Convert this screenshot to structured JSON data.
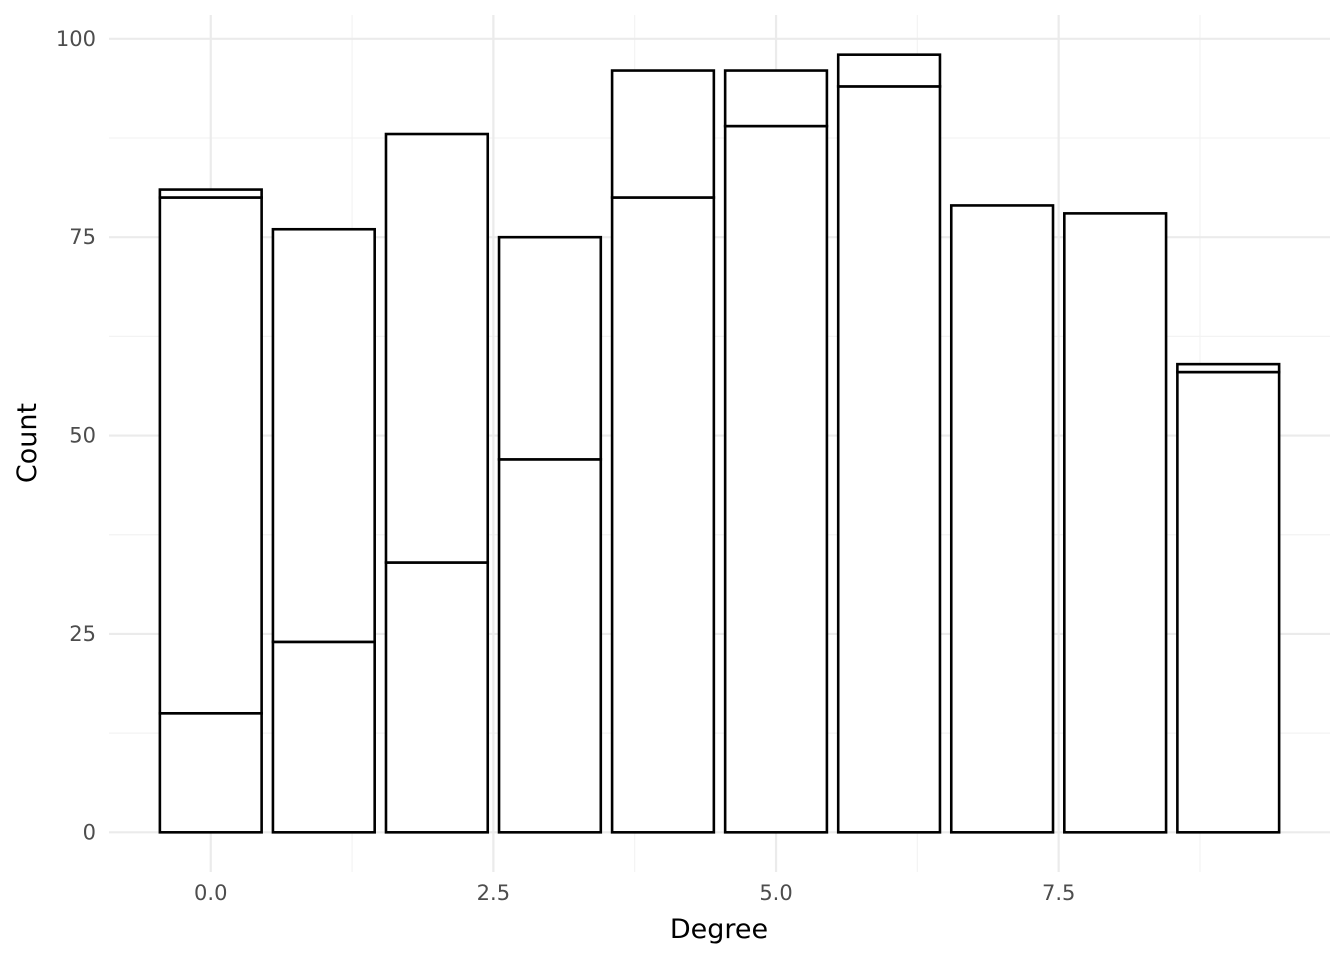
{
  "chart_data": {
    "type": "bar",
    "stacked": true,
    "xlabel": "Degree",
    "ylabel": "Count",
    "xlim": [
      -0.9,
      9.9
    ],
    "ylim": [
      -5,
      103
    ],
    "xticks": [
      0.0,
      2.5,
      5.0,
      7.5
    ],
    "xtick_labels": [
      "0.0",
      "2.5",
      "5.0",
      "7.5"
    ],
    "yticks": [
      0,
      25,
      50,
      75,
      100
    ],
    "ytick_labels": [
      "0",
      "25",
      "50",
      "75",
      "100"
    ],
    "grid": true,
    "legend": "none",
    "x": [
      0,
      1,
      2,
      3,
      4,
      5,
      6,
      7,
      8,
      9
    ],
    "series": [
      {
        "values": [
          15,
          24,
          34,
          47,
          80,
          89,
          94,
          79,
          78,
          58
        ]
      },
      {
        "values": [
          65,
          52,
          54,
          28,
          16,
          7,
          4,
          0,
          0,
          1
        ]
      },
      {
        "values": [
          1,
          0,
          0,
          0,
          0,
          0,
          0,
          0,
          0,
          0
        ]
      }
    ]
  }
}
